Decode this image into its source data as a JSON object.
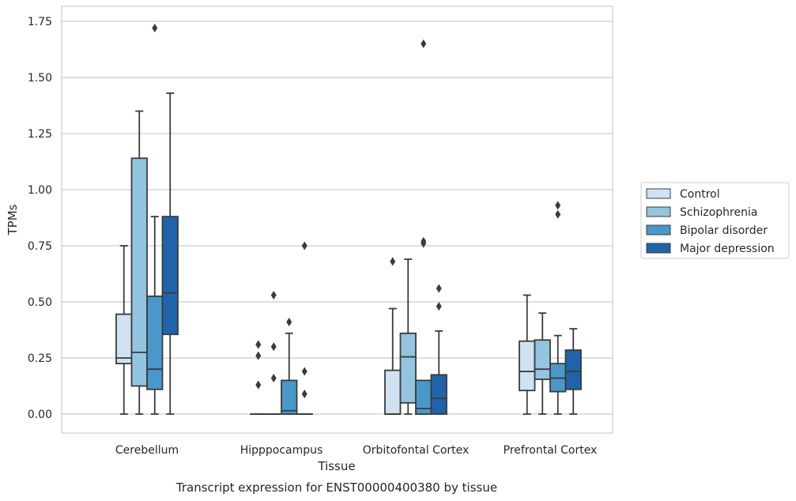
{
  "chart_data": {
    "type": "boxplot",
    "caption": "Transcript expression for ENST00000400380 by tissue",
    "xlabel": "Tissue",
    "ylabel": "TPMs",
    "ylim": [
      -0.085,
      1.81
    ],
    "yticks": [
      0.0,
      0.25,
      0.5,
      0.75,
      1.0,
      1.25,
      1.5,
      1.75
    ],
    "ytick_labels": [
      "0.00",
      "0.25",
      "0.50",
      "0.75",
      "1.00",
      "1.25",
      "1.50",
      "1.75"
    ],
    "grid": "horizontal",
    "legend_position": "right",
    "categories": [
      "Cerebellum",
      "Hipppocampus",
      "Orbitofontal Cortex",
      "Prefrontal Cortex"
    ],
    "series": [
      {
        "name": "Control",
        "color": "#d0e1f2",
        "boxes": [
          {
            "whislo": 0.0,
            "q1": 0.225,
            "med": 0.25,
            "q3": 0.445,
            "whishi": 0.75,
            "fliers": []
          },
          {
            "whislo": 0.0,
            "q1": 0.0,
            "med": 0.0,
            "q3": 0.0,
            "whishi": 0.0,
            "fliers": [
              0.13,
              0.26,
              0.31
            ]
          },
          {
            "whislo": 0.0,
            "q1": 0.0,
            "med": 0.0,
            "q3": 0.195,
            "whishi": 0.47,
            "fliers": [
              0.68
            ]
          },
          {
            "whislo": 0.0,
            "q1": 0.105,
            "med": 0.19,
            "q3": 0.325,
            "whishi": 0.53,
            "fliers": []
          }
        ]
      },
      {
        "name": "Schizophrenia",
        "color": "#94c4df",
        "boxes": [
          {
            "whislo": 0.0,
            "q1": 0.125,
            "med": 0.275,
            "q3": 1.14,
            "whishi": 1.35,
            "fliers": []
          },
          {
            "whislo": 0.0,
            "q1": 0.0,
            "med": 0.0,
            "q3": 0.0,
            "whishi": 0.0,
            "fliers": [
              0.16,
              0.3,
              0.53
            ]
          },
          {
            "whislo": 0.0,
            "q1": 0.05,
            "med": 0.255,
            "q3": 0.36,
            "whishi": 0.69,
            "fliers": []
          },
          {
            "whislo": 0.0,
            "q1": 0.155,
            "med": 0.2,
            "q3": 0.33,
            "whishi": 0.45,
            "fliers": []
          }
        ]
      },
      {
        "name": "Bipolar disorder",
        "color": "#4a98c9",
        "boxes": [
          {
            "whislo": 0.0,
            "q1": 0.11,
            "med": 0.2,
            "q3": 0.525,
            "whishi": 0.88,
            "fliers": [
              1.72
            ]
          },
          {
            "whislo": 0.0,
            "q1": 0.0,
            "med": 0.015,
            "q3": 0.15,
            "whishi": 0.36,
            "fliers": [
              0.41
            ]
          },
          {
            "whislo": 0.0,
            "q1": 0.0,
            "med": 0.025,
            "q3": 0.15,
            "whishi": 0.15,
            "fliers": [
              0.76,
              0.77,
              1.65
            ]
          },
          {
            "whislo": 0.0,
            "q1": 0.1,
            "med": 0.16,
            "q3": 0.225,
            "whishi": 0.35,
            "fliers": [
              0.89,
              0.93
            ]
          }
        ]
      },
      {
        "name": "Major depression",
        "color": "#2163aa",
        "boxes": [
          {
            "whislo": 0.0,
            "q1": 0.355,
            "med": 0.54,
            "q3": 0.88,
            "whishi": 1.43,
            "fliers": []
          },
          {
            "whislo": 0.0,
            "q1": 0.0,
            "med": 0.0,
            "q3": 0.0,
            "whishi": 0.0,
            "fliers": [
              0.09,
              0.19,
              0.75
            ]
          },
          {
            "whislo": 0.0,
            "q1": 0.0,
            "med": 0.07,
            "q3": 0.175,
            "whishi": 0.37,
            "fliers": [
              0.48,
              0.56
            ]
          },
          {
            "whislo": 0.0,
            "q1": 0.11,
            "med": 0.19,
            "q3": 0.285,
            "whishi": 0.38,
            "fliers": []
          }
        ]
      }
    ]
  }
}
